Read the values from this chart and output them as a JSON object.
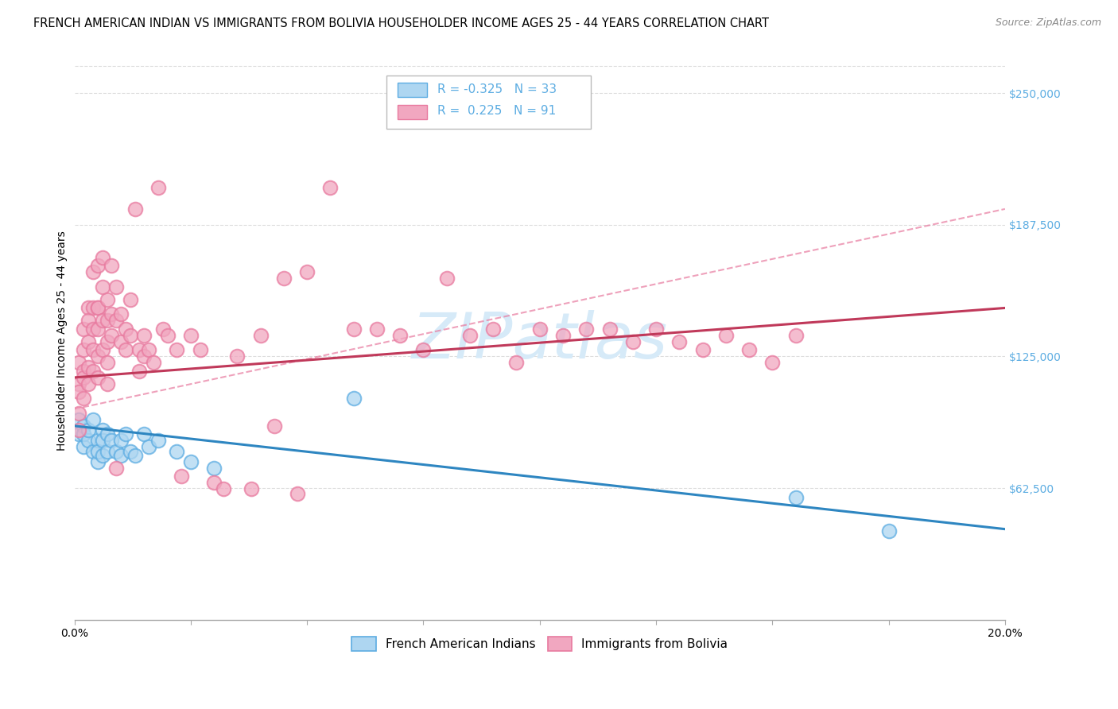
{
  "title": "FRENCH AMERICAN INDIAN VS IMMIGRANTS FROM BOLIVIA HOUSEHOLDER INCOME AGES 25 - 44 YEARS CORRELATION CHART",
  "source": "Source: ZipAtlas.com",
  "ylabel": "Householder Income Ages 25 - 44 years",
  "ytick_labels": [
    "$250,000",
    "$187,500",
    "$125,000",
    "$62,500"
  ],
  "ytick_values": [
    250000,
    187500,
    125000,
    62500
  ],
  "ymin": 0,
  "ymax": 265000,
  "xmin": 0.0,
  "xmax": 0.2,
  "legend_r_blue": "-0.325",
  "legend_n_blue": "33",
  "legend_r_pink": "0.225",
  "legend_n_pink": "91",
  "legend_label_blue": "French American Indians",
  "legend_label_pink": "Immigrants from Bolivia",
  "blue_color": "#AED6F1",
  "pink_color": "#F1A7C0",
  "blue_edge_color": "#5DADE2",
  "pink_edge_color": "#E87A9F",
  "blue_line_color": "#2E86C1",
  "pink_line_color": "#C0395A",
  "dashed_line_color": "#E87A9F",
  "watermark_color": "#D6EAF8",
  "right_tick_color": "#5DADE2",
  "grid_color": "#DDDDDD",
  "background_color": "#FFFFFF",
  "title_fontsize": 10.5,
  "tick_fontsize": 10,
  "axis_label_fontsize": 10,
  "blue_scatter_x": [
    0.001,
    0.001,
    0.002,
    0.002,
    0.002,
    0.003,
    0.003,
    0.004,
    0.004,
    0.005,
    0.005,
    0.005,
    0.006,
    0.006,
    0.006,
    0.007,
    0.007,
    0.008,
    0.009,
    0.01,
    0.01,
    0.011,
    0.012,
    0.013,
    0.015,
    0.016,
    0.018,
    0.022,
    0.025,
    0.03,
    0.06,
    0.155,
    0.175
  ],
  "blue_scatter_y": [
    95000,
    88000,
    92000,
    82000,
    88000,
    85000,
    90000,
    80000,
    95000,
    75000,
    85000,
    80000,
    90000,
    78000,
    85000,
    88000,
    80000,
    85000,
    80000,
    85000,
    78000,
    88000,
    80000,
    78000,
    88000,
    82000,
    85000,
    80000,
    75000,
    72000,
    105000,
    58000,
    42000
  ],
  "pink_scatter_x": [
    0.001,
    0.001,
    0.001,
    0.001,
    0.001,
    0.002,
    0.002,
    0.002,
    0.002,
    0.002,
    0.003,
    0.003,
    0.003,
    0.003,
    0.003,
    0.004,
    0.004,
    0.004,
    0.004,
    0.004,
    0.005,
    0.005,
    0.005,
    0.005,
    0.005,
    0.005,
    0.006,
    0.006,
    0.006,
    0.006,
    0.007,
    0.007,
    0.007,
    0.007,
    0.007,
    0.008,
    0.008,
    0.008,
    0.009,
    0.009,
    0.009,
    0.01,
    0.01,
    0.011,
    0.011,
    0.012,
    0.012,
    0.013,
    0.014,
    0.014,
    0.015,
    0.015,
    0.016,
    0.017,
    0.018,
    0.019,
    0.02,
    0.022,
    0.023,
    0.025,
    0.027,
    0.03,
    0.032,
    0.035,
    0.038,
    0.04,
    0.043,
    0.045,
    0.048,
    0.05,
    0.055,
    0.06,
    0.065,
    0.07,
    0.075,
    0.08,
    0.085,
    0.09,
    0.095,
    0.1,
    0.105,
    0.11,
    0.115,
    0.12,
    0.125,
    0.13,
    0.135,
    0.14,
    0.145,
    0.15,
    0.155
  ],
  "pink_scatter_y": [
    98000,
    112000,
    122000,
    108000,
    90000,
    118000,
    128000,
    138000,
    105000,
    115000,
    148000,
    132000,
    120000,
    112000,
    142000,
    165000,
    148000,
    138000,
    128000,
    118000,
    168000,
    148000,
    138000,
    125000,
    115000,
    148000,
    172000,
    158000,
    142000,
    128000,
    152000,
    142000,
    132000,
    122000,
    112000,
    145000,
    168000,
    135000,
    158000,
    142000,
    72000,
    145000,
    132000,
    138000,
    128000,
    152000,
    135000,
    195000,
    128000,
    118000,
    125000,
    135000,
    128000,
    122000,
    205000,
    138000,
    135000,
    128000,
    68000,
    135000,
    128000,
    65000,
    62000,
    125000,
    62000,
    135000,
    92000,
    162000,
    60000,
    165000,
    205000,
    138000,
    138000,
    135000,
    128000,
    162000,
    135000,
    138000,
    122000,
    138000,
    135000,
    138000,
    138000,
    132000,
    138000,
    132000,
    128000,
    135000,
    128000,
    122000,
    135000
  ]
}
